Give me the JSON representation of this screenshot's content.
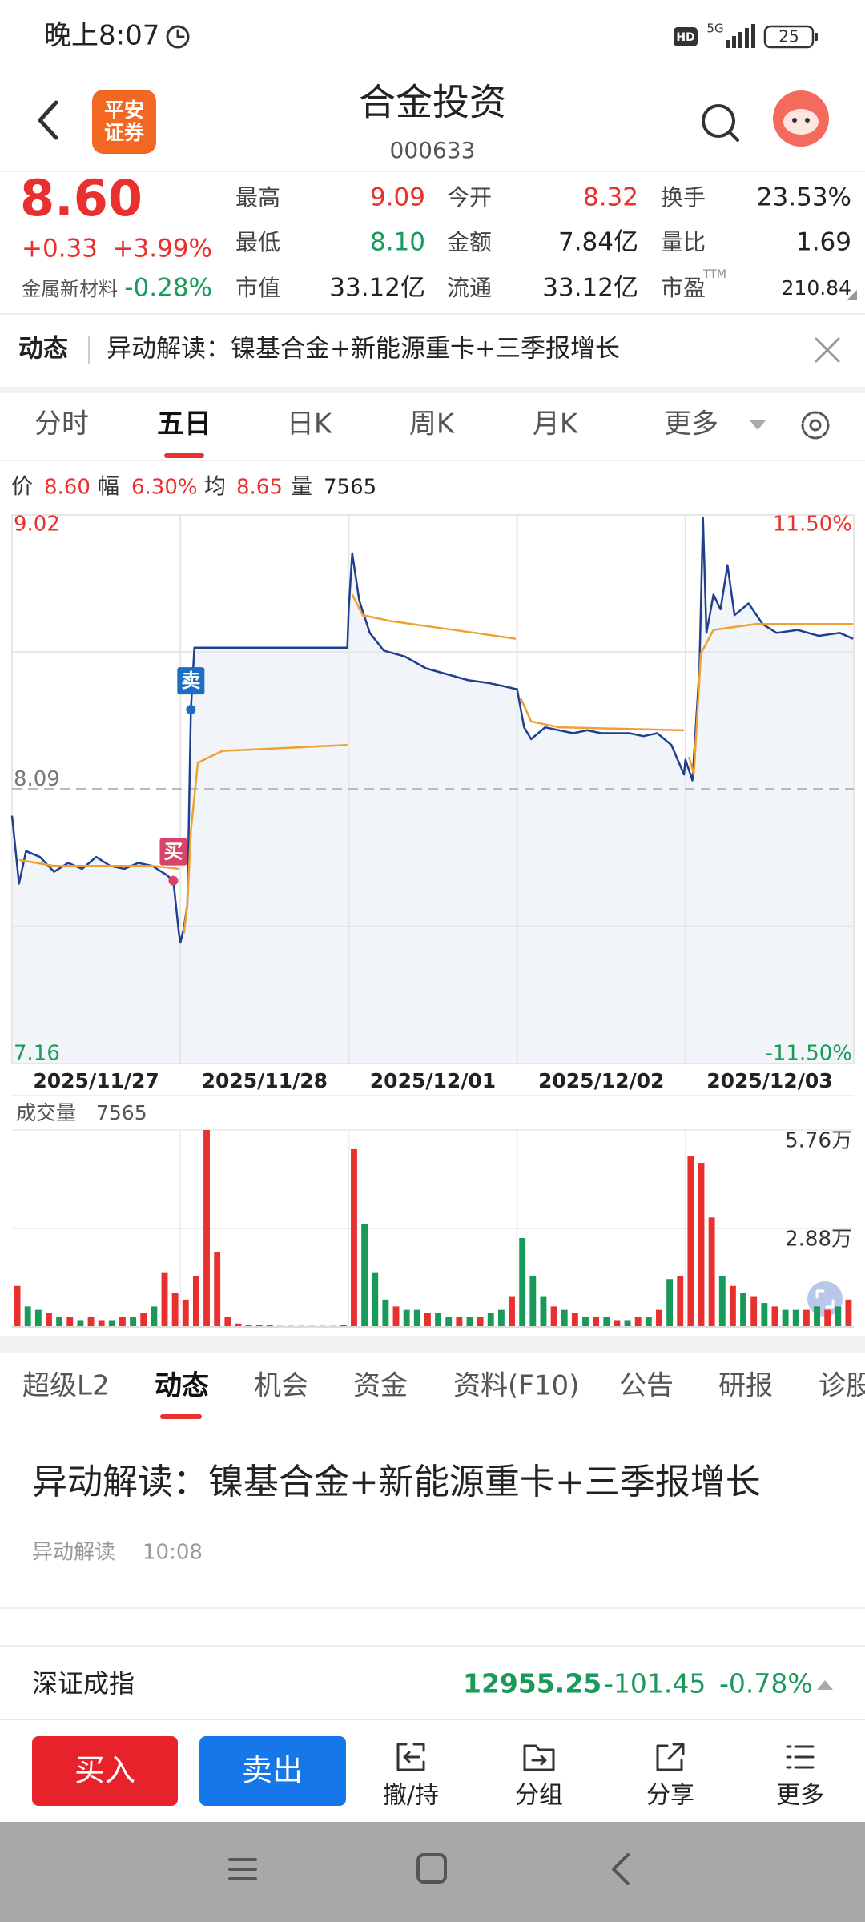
{
  "status_bar": {
    "time": "晚上8:07",
    "hd": "HD",
    "network": "5G",
    "battery": "25"
  },
  "header": {
    "title": "合金投资",
    "code": "000633",
    "logo": [
      "平安",
      "证券"
    ]
  },
  "quote": {
    "price": "8.60",
    "change": "+0.33",
    "change_pct": "+3.99%",
    "sector": "金属新材料",
    "sector_pct": "-0.28%",
    "fields": [
      {
        "label": "最高",
        "value": "9.09",
        "color": "#e8312f"
      },
      {
        "label": "最低",
        "value": "8.10",
        "color": "#1a9a5a"
      },
      {
        "label": "市值",
        "value": "33.12亿",
        "color": "#222222"
      },
      {
        "label": "今开",
        "value": "8.32",
        "color": "#e8312f"
      },
      {
        "label": "金额",
        "value": "7.84亿",
        "color": "#222222"
      },
      {
        "label": "流通",
        "value": "33.12亿",
        "color": "#222222"
      },
      {
        "label": "换手",
        "value": "23.53%",
        "color": "#222222"
      },
      {
        "label": "量比",
        "value": "1.69",
        "color": "#222222"
      },
      {
        "label": "市盈",
        "value": "210.84",
        "color": "#222222"
      }
    ],
    "pe_sup": "TTM"
  },
  "news_bar": {
    "tag": "动态",
    "text": "异动解读：镍基合金+新能源重卡+三季报增长"
  },
  "chart_tabs": [
    "分时",
    "五日",
    "日K",
    "周K",
    "月K",
    "更多"
  ],
  "active_chart_tab": 1,
  "info_row": [
    {
      "label": "价",
      "value": "8.60",
      "color": "#e8312f"
    },
    {
      "label": "幅",
      "value": "6.30%",
      "color": "#e8312f"
    },
    {
      "label": "均",
      "value": "8.65",
      "color": "#e8312f"
    },
    {
      "label": "量",
      "value": "7565",
      "color": "#222222"
    }
  ],
  "chart_data": [
    {
      "type": "line",
      "xlim": [
        0,
        1200
      ],
      "ylim": [
        7.16,
        9.02
      ],
      "yticks": [
        9.02,
        8.09,
        7.16
      ],
      "y2lim": [
        -11.5,
        11.5
      ],
      "y2ticks": [
        {
          "value": 11.5,
          "label": "11.50%"
        },
        {
          "value": -11.5,
          "label": "-11.50%"
        }
      ],
      "day_labels": [
        "2025/11/27",
        "2025/11/28",
        "2025/12/01",
        "2025/12/02",
        "2025/12/03"
      ],
      "series": [
        {
          "color": "#1f3f8f",
          "x": [
            0,
            10,
            20,
            40,
            60,
            80,
            100,
            120,
            140,
            160,
            180,
            200,
            220,
            230,
            238,
            240,
            245,
            250,
            255,
            260,
            300,
            478,
            480,
            485,
            495,
            510,
            530,
            560,
            590,
            620,
            650,
            680,
            700,
            718,
            720,
            730,
            740,
            760,
            780,
            800,
            820,
            840,
            860,
            880,
            900,
            920,
            940,
            958,
            960,
            970,
            980,
            985,
            990,
            1000,
            1010,
            1020,
            1030,
            1050,
            1070,
            1090,
            1120,
            1150,
            1180,
            1199
          ],
          "values": [
            8.0,
            7.77,
            7.88,
            7.86,
            7.81,
            7.84,
            7.82,
            7.86,
            7.83,
            7.82,
            7.84,
            7.83,
            7.8,
            7.78,
            7.6,
            7.57,
            7.62,
            7.7,
            8.36,
            8.57,
            8.57,
            8.57,
            8.7,
            8.89,
            8.73,
            8.62,
            8.56,
            8.54,
            8.5,
            8.48,
            8.46,
            8.45,
            8.44,
            8.43,
            8.43,
            8.3,
            8.26,
            8.3,
            8.29,
            8.28,
            8.29,
            8.28,
            8.28,
            8.28,
            8.27,
            8.28,
            8.24,
            8.14,
            8.19,
            8.12,
            8.5,
            9.01,
            8.62,
            8.75,
            8.7,
            8.85,
            8.68,
            8.72,
            8.65,
            8.62,
            8.63,
            8.61,
            8.62,
            8.6
          ]
        },
        {
          "color": "#f0a030",
          "x": [
            10,
            60,
            120,
            200,
            238,
            239,
            245,
            250,
            255,
            265,
            300,
            478,
            479,
            485,
            500,
            540,
            600,
            660,
            718,
            719,
            725,
            740,
            780,
            958,
            959,
            965,
            972,
            982,
            1000,
            1060,
            1199
          ],
          "values": [
            7.85,
            7.83,
            7.83,
            7.83,
            7.82,
            null,
            7.6,
            7.7,
            7.95,
            8.18,
            8.22,
            8.24,
            null,
            8.75,
            8.68,
            8.66,
            8.64,
            8.62,
            8.6,
            null,
            8.4,
            8.32,
            8.3,
            8.29,
            null,
            8.2,
            8.14,
            8.55,
            8.63,
            8.65,
            8.65
          ]
        }
      ],
      "annotations": [
        {
          "text": "卖",
          "x": 255,
          "value": 8.36,
          "color": "#1a6fc4"
        },
        {
          "text": "买",
          "x": 230,
          "value": 7.78,
          "color": "#d9436a"
        }
      ]
    },
    {
      "type": "bar",
      "title": "成交量",
      "subtitle": "7565",
      "ylim": [
        0,
        5.76
      ],
      "yticks": [
        {
          "value": 5.76,
          "label": "5.76万"
        },
        {
          "value": 2.88,
          "label": "2.88万"
        }
      ],
      "up_color": "#e8312f",
      "down_color": "#1a9a5a",
      "values": [
        1.2,
        0.6,
        0.5,
        0.4,
        0.3,
        0.3,
        0.2,
        0.3,
        0.2,
        0.2,
        0.3,
        0.3,
        0.4,
        0.6,
        1.6,
        1.0,
        0.8,
        1.5,
        5.76,
        2.2,
        0.3,
        0.1,
        0.05,
        0.05,
        0.05,
        0.03,
        0.03,
        0.03,
        0.03,
        0.03,
        0.03,
        0.05,
        5.2,
        3.0,
        1.6,
        0.8,
        0.6,
        0.5,
        0.5,
        0.4,
        0.4,
        0.3,
        0.3,
        0.3,
        0.3,
        0.4,
        0.5,
        0.9,
        2.6,
        1.5,
        0.9,
        0.6,
        0.5,
        0.4,
        0.3,
        0.3,
        0.3,
        0.2,
        0.2,
        0.3,
        0.3,
        0.5,
        1.4,
        1.5,
        5.0,
        4.8,
        3.2,
        1.5,
        1.2,
        1.0,
        0.9,
        0.7,
        0.6,
        0.5,
        0.5,
        0.5,
        0.6,
        0.5,
        0.6,
        0.8
      ],
      "up": [
        1,
        0,
        0,
        1,
        0,
        1,
        0,
        1,
        1,
        0,
        1,
        0,
        1,
        0,
        1,
        1,
        1,
        1,
        1,
        1,
        1,
        1,
        1,
        1,
        1,
        1,
        1,
        1,
        1,
        1,
        1,
        1,
        1,
        0,
        0,
        0,
        1,
        0,
        0,
        1,
        0,
        0,
        1,
        0,
        1,
        0,
        0,
        1,
        0,
        0,
        0,
        1,
        0,
        1,
        0,
        1,
        0,
        1,
        0,
        1,
        0,
        1,
        0,
        1,
        1,
        1,
        1,
        0,
        1,
        0,
        1,
        0,
        1,
        0,
        0,
        1,
        0,
        1,
        0,
        1
      ]
    }
  ],
  "detail_tabs": [
    "超级L2",
    "动态",
    "机会",
    "资金",
    "资料(F10)",
    "公告",
    "研报",
    "诊股"
  ],
  "active_detail_tab": 1,
  "news": {
    "headline": "异动解读：镍基合金+新能源重卡+三季报增长",
    "source": "异动解读",
    "time": "10:08"
  },
  "index": {
    "name": "深证成指",
    "value": "12955.25",
    "change": "-101.45",
    "change_pct": "-0.78%"
  },
  "actions": {
    "buy": "买入",
    "sell": "卖出",
    "tools": [
      "撤/持",
      "分组",
      "分享",
      "更多"
    ]
  }
}
